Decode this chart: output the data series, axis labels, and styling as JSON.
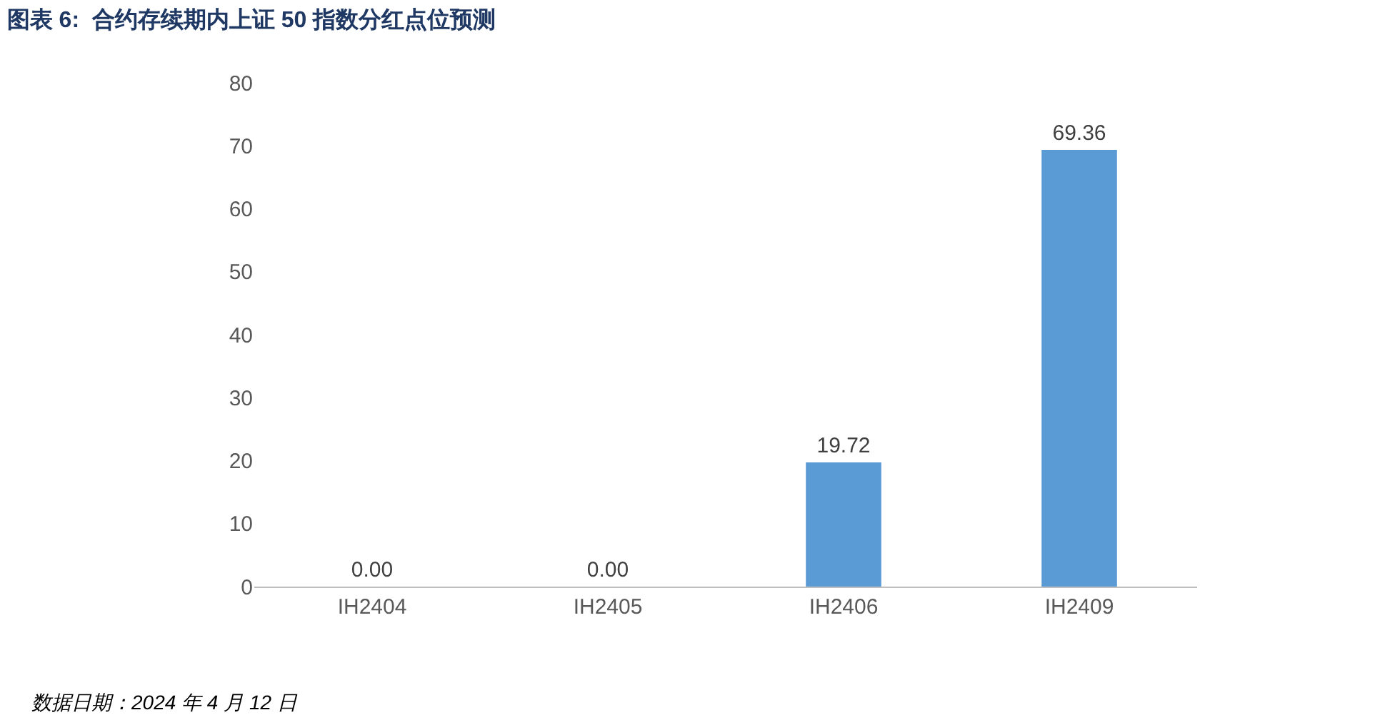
{
  "chart_data": {
    "type": "bar",
    "title": "图表 6:  合约存续期内上证 50 指数分红点位预测",
    "categories": [
      "IH2404",
      "IH2405",
      "IH2406",
      "IH2409"
    ],
    "values": [
      0,
      0,
      19.72,
      69.36
    ],
    "value_labels": [
      "0.00",
      "0.00",
      "19.72",
      "69.36"
    ],
    "color": "#5b9bd5",
    "ylim": [
      0,
      80
    ],
    "yticks": [
      0,
      10,
      20,
      30,
      40,
      50,
      60,
      70,
      80
    ],
    "grid": false,
    "legend": false,
    "annotations": [
      "数据日期：2024 年 4 月 12 日"
    ]
  }
}
